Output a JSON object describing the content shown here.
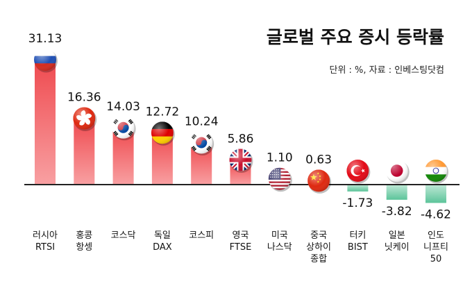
{
  "chart_data": {
    "type": "bar",
    "title": "글로벌 주요 증시 등락률",
    "subtitle": "단위 : %, 자료 : 인베스팅닷컴",
    "categories": [
      [
        "러시아",
        "RTSI"
      ],
      [
        "홍콩",
        "항셍"
      ],
      [
        "코스닥"
      ],
      [
        "독일",
        "DAX"
      ],
      [
        "코스피"
      ],
      [
        "영국",
        "FTSE"
      ],
      [
        "미국",
        "나스닥"
      ],
      [
        "중국",
        "상하이",
        "종합"
      ],
      [
        "터키",
        "BIST"
      ],
      [
        "일본",
        "닛케이"
      ],
      [
        "인도",
        "니프티",
        "50"
      ]
    ],
    "values": [
      31.13,
      16.36,
      14.03,
      12.72,
      10.24,
      5.86,
      1.1,
      0.63,
      -1.73,
      -3.82,
      -4.62
    ],
    "value_labels": [
      "31.13",
      "16.36",
      "14.03",
      "12.72",
      "10.24",
      "5.86",
      "1.10",
      "0.63",
      "-1.73",
      "-3.82",
      "-4.62"
    ],
    "flags": [
      "russia",
      "hongkong",
      "korea",
      "germany",
      "korea",
      "uk",
      "usa",
      "china",
      "turkey",
      "japan",
      "india"
    ],
    "colors": {
      "positive": "#ef4b50",
      "positive_light": "#f8a0a2",
      "negative": "#5cc49a",
      "negative_light": "#bfe8d6",
      "axis": "#222222",
      "text": "#111111"
    }
  }
}
